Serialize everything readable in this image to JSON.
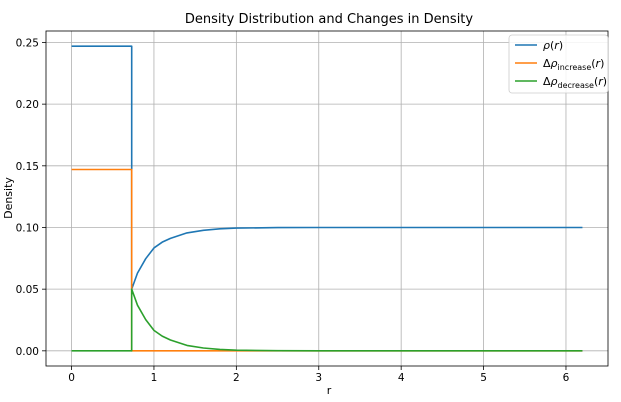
{
  "chart_data": {
    "type": "line",
    "title": "Density Distribution and Changes in Density",
    "xlabel": "r",
    "ylabel": "Density",
    "xlim": [
      -0.31,
      6.51
    ],
    "ylim": [
      -0.0123,
      0.2593
    ],
    "xticks": [
      0,
      1,
      2,
      3,
      4,
      5,
      6
    ],
    "xtick_labels": [
      "0",
      "1",
      "2",
      "3",
      "4",
      "5",
      "6"
    ],
    "yticks": [
      0.0,
      0.05,
      0.1,
      0.15,
      0.2,
      0.25
    ],
    "ytick_labels": [
      "0.00",
      "0.05",
      "0.10",
      "0.15",
      "0.20",
      "0.25"
    ],
    "grid": true,
    "legend_position": "top-right",
    "series": [
      {
        "name": "ρ(r)",
        "color": "#1f77b4",
        "points": [
          [
            0,
            0.247
          ],
          [
            0.73,
            0.247
          ],
          [
            0.73,
            0.05
          ],
          [
            0.8,
            0.063
          ],
          [
            0.9,
            0.0747
          ],
          [
            1.0,
            0.0834
          ],
          [
            1.1,
            0.0881
          ],
          [
            1.2,
            0.0912
          ],
          [
            1.4,
            0.0956
          ],
          [
            1.6,
            0.0977
          ],
          [
            1.8,
            0.0989
          ],
          [
            2.0,
            0.0995
          ],
          [
            2.5,
            0.0999
          ],
          [
            3.0,
            0.1
          ],
          [
            4.0,
            0.1
          ],
          [
            5.0,
            0.1
          ],
          [
            6.2,
            0.1
          ]
        ]
      },
      {
        "name": "Δρ_increase(r)",
        "color": "#ff7f0e",
        "points": [
          [
            0,
            0.147
          ],
          [
            0.73,
            0.147
          ],
          [
            0.73,
            0.0
          ],
          [
            6.2,
            0.0
          ]
        ]
      },
      {
        "name": "Δρ_decrease(r)",
        "color": "#2ca02c",
        "points": [
          [
            0,
            0.0
          ],
          [
            0.73,
            0.0
          ],
          [
            0.73,
            0.05
          ],
          [
            0.8,
            0.037
          ],
          [
            0.9,
            0.0253
          ],
          [
            1.0,
            0.0166
          ],
          [
            1.1,
            0.0119
          ],
          [
            1.2,
            0.0088
          ],
          [
            1.4,
            0.0044
          ],
          [
            1.6,
            0.0023
          ],
          [
            1.8,
            0.0011
          ],
          [
            2.0,
            0.0005
          ],
          [
            2.5,
            0.0001
          ],
          [
            3.0,
            0.0
          ],
          [
            4.0,
            0.0
          ],
          [
            5.0,
            0.0
          ],
          [
            6.2,
            0.0
          ]
        ]
      }
    ]
  }
}
